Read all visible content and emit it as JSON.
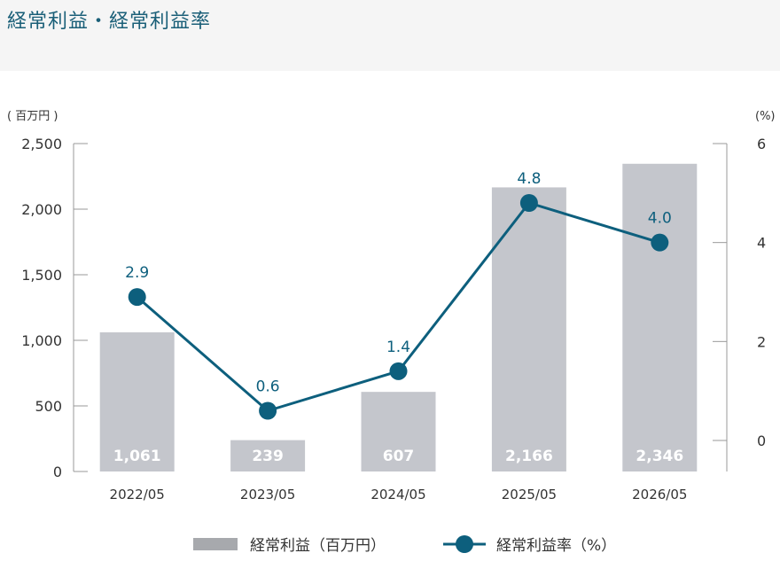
{
  "header": {
    "title": "経常利益・経常利益率"
  },
  "colors": {
    "bar": "#c4c6cc",
    "line": "#0d5f7d",
    "axis": "#999999"
  },
  "chart_data": {
    "type": "bar",
    "categories": [
      "2022/05",
      "2023/05",
      "2024/05",
      "2025/05",
      "2026/05"
    ],
    "series": [
      {
        "name": "経常利益（百万円）",
        "type": "bar",
        "axis": "left",
        "values": [
          1061,
          239,
          607,
          2166,
          2346
        ],
        "labels": [
          "1,061",
          "239",
          "607",
          "2,166",
          "2,346"
        ]
      },
      {
        "name": "経常利益率（%）",
        "type": "line",
        "axis": "right",
        "values": [
          2.9,
          0.6,
          1.4,
          4.8,
          4.0
        ],
        "labels": [
          "2.9",
          "0.6",
          "1.4",
          "4.8",
          "4.0"
        ]
      }
    ],
    "y_left": {
      "unit": "( 百万円 )",
      "ylim": [
        0,
        2500
      ],
      "ticks": [
        0,
        500,
        1000,
        1500,
        2000,
        2500
      ],
      "tick_labels": [
        "0",
        "500",
        "1,000",
        "1,500",
        "2,000",
        "2,500"
      ]
    },
    "y_right": {
      "unit": "(%)",
      "ylim": [
        0,
        6
      ],
      "ticks": [
        0,
        2,
        4,
        6
      ],
      "tick_labels": [
        "0",
        "2",
        "4",
        "6"
      ]
    },
    "grid": false,
    "legend_position": "bottom"
  }
}
